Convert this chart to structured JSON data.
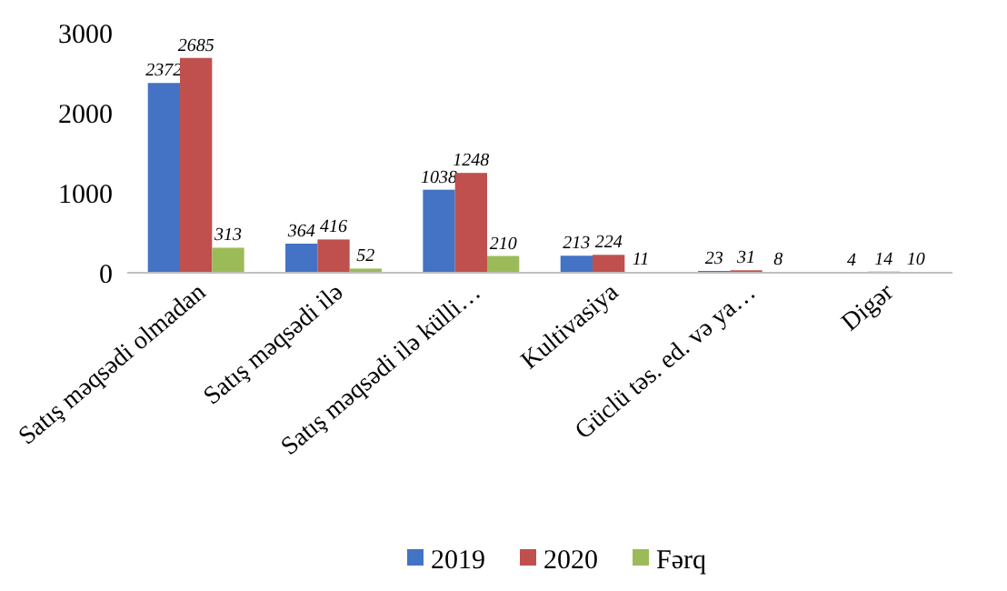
{
  "chart_data": {
    "type": "bar",
    "categories": [
      "Satış məqsədi olmadan",
      "Satış məqsədi ilə",
      "Satış məqsədi ilə külli…",
      "Kultivasiya",
      "Güclü təs. ed. və ya…",
      "Digər"
    ],
    "series": [
      {
        "name": "2019",
        "color": "#4472c4",
        "values": [
          2372,
          364,
          1038,
          213,
          23,
          4
        ]
      },
      {
        "name": "2020",
        "color": "#c0504d",
        "values": [
          2685,
          416,
          1248,
          224,
          31,
          14
        ]
      },
      {
        "name": "Fərq",
        "color": "#9bbb59",
        "values": [
          313,
          52,
          210,
          11,
          8,
          10
        ]
      }
    ],
    "ylim": [
      0,
      3000
    ],
    "yticks": [
      0,
      1000,
      2000,
      3000
    ],
    "grid": false,
    "legend": "bottom",
    "data_labels": true
  }
}
